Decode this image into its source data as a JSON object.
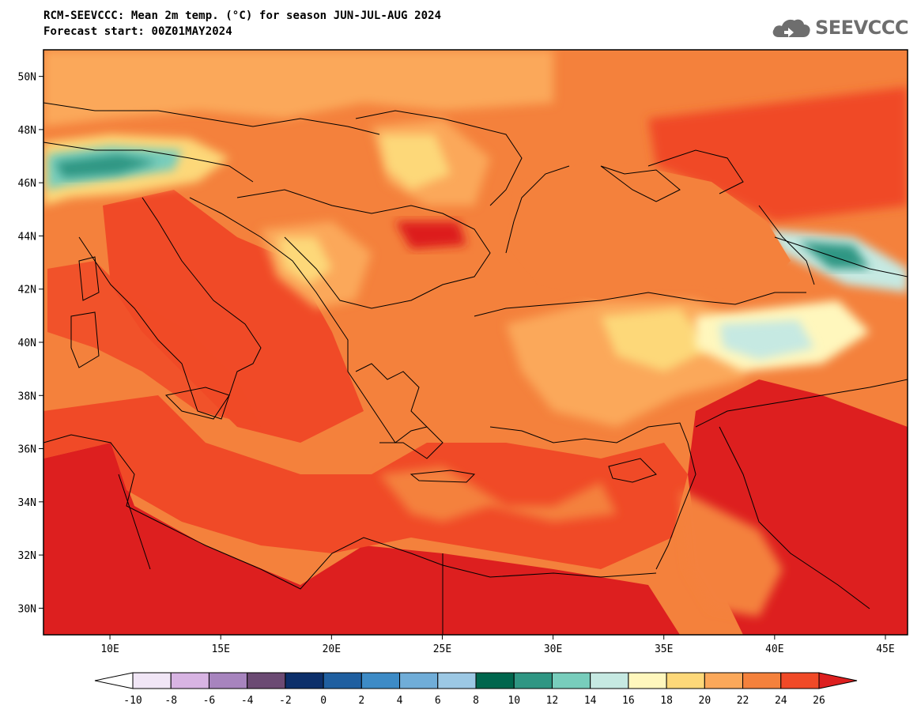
{
  "header": {
    "title_line1": "RCM-SEEVCCC: Mean 2m temp. (°C) for season JUN-JUL-AUG 2024",
    "title_line2": "Forecast start: 00Z01MAY2024"
  },
  "logo": {
    "text": "SEEVCCC",
    "icon": "cloud-icon"
  },
  "map": {
    "lon_range": [
      7,
      46
    ],
    "lat_range": [
      29,
      51
    ],
    "lat_ticks": [
      "50N",
      "48N",
      "46N",
      "44N",
      "42N",
      "40N",
      "38N",
      "36N",
      "34N",
      "32N",
      "30N"
    ],
    "lat_values": [
      50,
      48,
      46,
      44,
      42,
      40,
      38,
      36,
      34,
      32,
      30
    ],
    "lon_ticks": [
      "10E",
      "15E",
      "20E",
      "25E",
      "30E",
      "35E",
      "40E",
      "45E"
    ],
    "lon_values": [
      10,
      15,
      20,
      25,
      30,
      35,
      40,
      45
    ],
    "background_color": "#f4813c"
  },
  "colorbar": {
    "labels": [
      "-10",
      "-8",
      "-6",
      "-4",
      "-2",
      "0",
      "2",
      "4",
      "6",
      "8",
      "10",
      "12",
      "14",
      "16",
      "18",
      "20",
      "22",
      "24",
      "26"
    ],
    "below_color": "#ffffff",
    "above_color": "#dd1f1f",
    "colors": [
      "#f1e6f6",
      "#d8b4e3",
      "#a784be",
      "#6b4a73",
      "#0c2f6a",
      "#1f5fa0",
      "#3d8bc6",
      "#70add8",
      "#9cc8e4",
      "#00664d",
      "#2f9683",
      "#78cdbc",
      "#c6e9e2",
      "#fff7bd",
      "#fdd879",
      "#fba85a",
      "#f4813c",
      "#f04a27"
    ]
  }
}
